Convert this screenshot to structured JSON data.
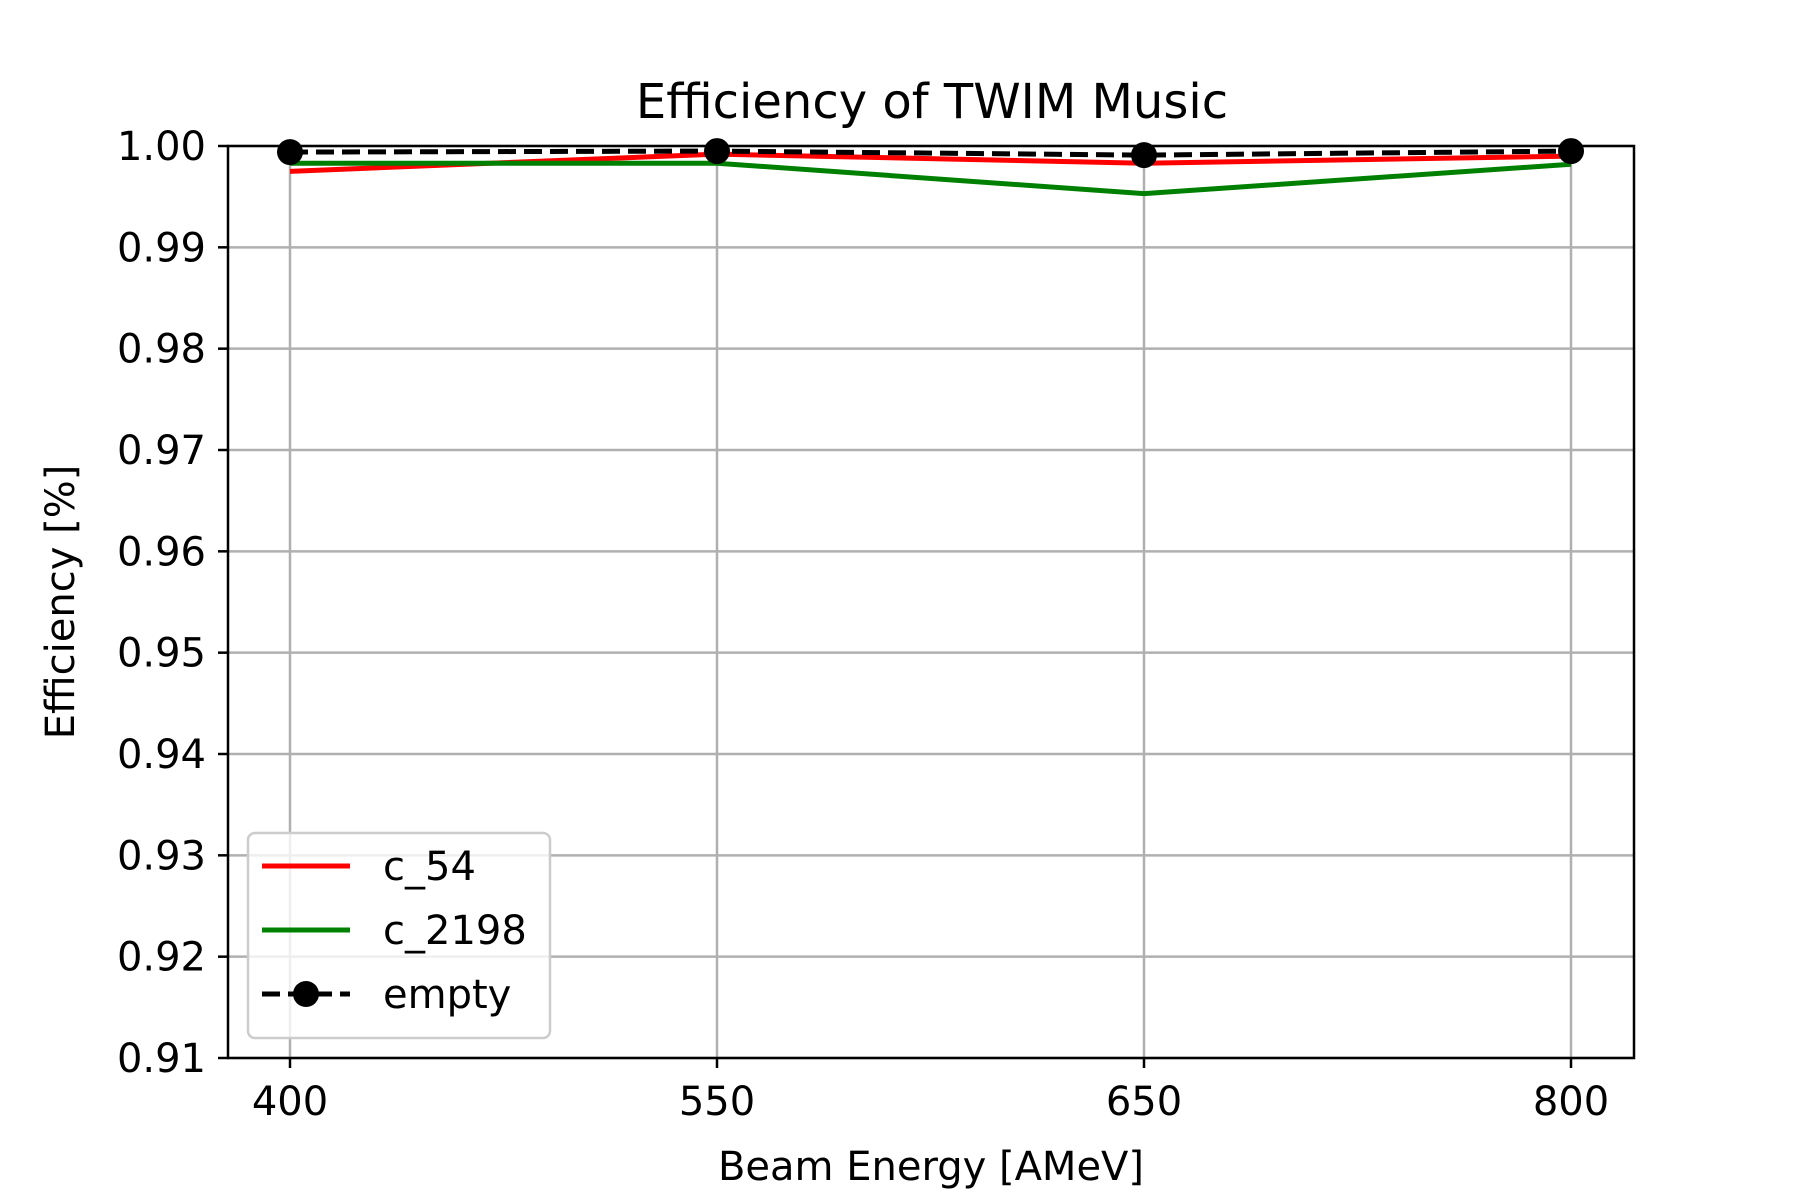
{
  "chart_data": {
    "type": "line",
    "title": "Efficiency of TWIM Music",
    "xlabel": "Beam Energy [AMeV]",
    "ylabel": "Efficiency [%]",
    "categories": [
      "400",
      "550",
      "650",
      "800"
    ],
    "ylim": [
      0.91,
      1.0
    ],
    "yticks": [
      "0.91",
      "0.92",
      "0.93",
      "0.94",
      "0.95",
      "0.96",
      "0.97",
      "0.98",
      "0.99",
      "1.00"
    ],
    "grid": true,
    "legend_position": "lower-left",
    "series": [
      {
        "name": "c_54",
        "color": "#ff0000",
        "style": "solid",
        "marker": "none",
        "values": [
          0.9975,
          0.9992,
          0.9983,
          0.999
        ]
      },
      {
        "name": "c_2198",
        "color": "#008000",
        "style": "solid",
        "marker": "none",
        "values": [
          0.9983,
          0.9983,
          0.9953,
          0.9982
        ]
      },
      {
        "name": "empty",
        "color": "#000000",
        "style": "dashed",
        "marker": "circle",
        "values": [
          0.9994,
          0.9995,
          0.9991,
          0.9995
        ]
      }
    ]
  }
}
